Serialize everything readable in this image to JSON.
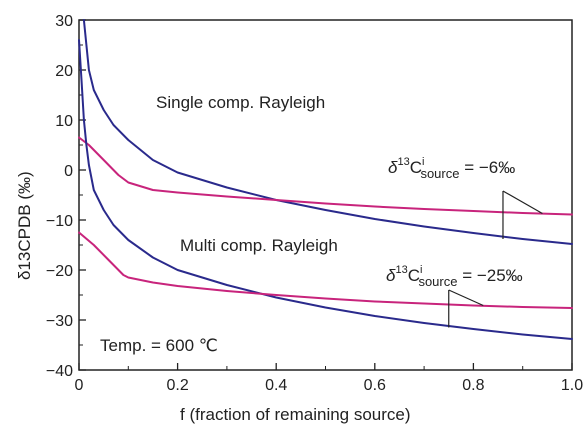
{
  "chart_data": {
    "type": "line",
    "xlabel": "f (fraction of remaining source)",
    "ylabel": "δ13CPDB (‰)",
    "xlim": [
      0,
      1.0
    ],
    "ylim": [
      -40,
      30
    ],
    "x_ticks": [
      "0",
      "0.2",
      "0.4",
      "0.6",
      "0.8",
      "1.0"
    ],
    "y_ticks": [
      "30",
      "20",
      "10",
      "0",
      "−10",
      "−20",
      "−30",
      "−40"
    ],
    "grid": false,
    "annotations": {
      "single": "Single comp. Rayleigh",
      "multi": "Multi comp. Rayleigh",
      "temp": "Temp. = 600 ℃",
      "src1_delta": "δ",
      "src1_sup13": "13",
      "src1_C": "C",
      "src1_supi": "i",
      "src1_sub": "source",
      "src1_value": " = −6‰",
      "src2_delta": "δ",
      "src2_sup13": "13",
      "src2_C": "C",
      "src2_supi": "i",
      "src2_sub": "source",
      "src2_value": " = −25‰"
    },
    "colors": {
      "blue": "#2a2a8c",
      "magenta": "#c8247c",
      "axis": "#222222"
    },
    "series": [
      {
        "color": "blue",
        "points": [
          [
            0.01,
            30
          ],
          [
            0.015,
            25
          ],
          [
            0.02,
            20
          ],
          [
            0.03,
            16
          ],
          [
            0.05,
            12
          ],
          [
            0.07,
            9
          ],
          [
            0.1,
            6
          ],
          [
            0.15,
            2
          ],
          [
            0.2,
            -0.5
          ],
          [
            0.3,
            -3.5
          ],
          [
            0.4,
            -6
          ],
          [
            0.5,
            -8
          ],
          [
            0.6,
            -9.8
          ],
          [
            0.7,
            -11.3
          ],
          [
            0.8,
            -12.6
          ],
          [
            0.9,
            -13.8
          ],
          [
            1.0,
            -14.8
          ]
        ]
      },
      {
        "color": "magenta",
        "points": [
          [
            0,
            6.5
          ],
          [
            0.02,
            5
          ],
          [
            0.05,
            2
          ],
          [
            0.08,
            -1
          ],
          [
            0.1,
            -2.5
          ],
          [
            0.15,
            -4
          ],
          [
            0.2,
            -4.5
          ],
          [
            0.3,
            -5.3
          ],
          [
            0.4,
            -6
          ],
          [
            0.5,
            -6.7
          ],
          [
            0.6,
            -7.3
          ],
          [
            0.7,
            -7.8
          ],
          [
            0.8,
            -8.2
          ],
          [
            0.9,
            -8.6
          ],
          [
            1.0,
            -8.9
          ]
        ]
      },
      {
        "color": "blue",
        "points": [
          [
            0,
            26
          ],
          [
            0.005,
            18
          ],
          [
            0.01,
            10
          ],
          [
            0.015,
            5
          ],
          [
            0.02,
            1
          ],
          [
            0.03,
            -4
          ],
          [
            0.05,
            -8
          ],
          [
            0.07,
            -11
          ],
          [
            0.1,
            -14
          ],
          [
            0.15,
            -17.5
          ],
          [
            0.2,
            -20
          ],
          [
            0.3,
            -23
          ],
          [
            0.4,
            -25.5
          ],
          [
            0.5,
            -27.5
          ],
          [
            0.6,
            -29.2
          ],
          [
            0.7,
            -30.6
          ],
          [
            0.8,
            -31.8
          ],
          [
            0.9,
            -32.9
          ],
          [
            1.0,
            -33.8
          ]
        ]
      },
      {
        "color": "magenta",
        "points": [
          [
            0,
            -12.5
          ],
          [
            0.03,
            -15
          ],
          [
            0.06,
            -18
          ],
          [
            0.09,
            -21
          ],
          [
            0.1,
            -21.5
          ],
          [
            0.15,
            -22.5
          ],
          [
            0.2,
            -23.2
          ],
          [
            0.3,
            -24.2
          ],
          [
            0.4,
            -25
          ],
          [
            0.5,
            -25.7
          ],
          [
            0.6,
            -26.3
          ],
          [
            0.7,
            -26.7
          ],
          [
            0.8,
            -27.1
          ],
          [
            0.9,
            -27.4
          ],
          [
            1.0,
            -27.6
          ]
        ]
      }
    ],
    "pointers": [
      {
        "from": [
          0.86,
          -4.2
        ],
        "to": [
          [
            0.94,
            -8.7
          ],
          [
            0.86,
            -13.8
          ]
        ]
      },
      {
        "from": [
          0.75,
          -24
        ],
        "to": [
          [
            0.82,
            -27.1
          ],
          [
            0.75,
            -31.5
          ]
        ]
      }
    ]
  }
}
